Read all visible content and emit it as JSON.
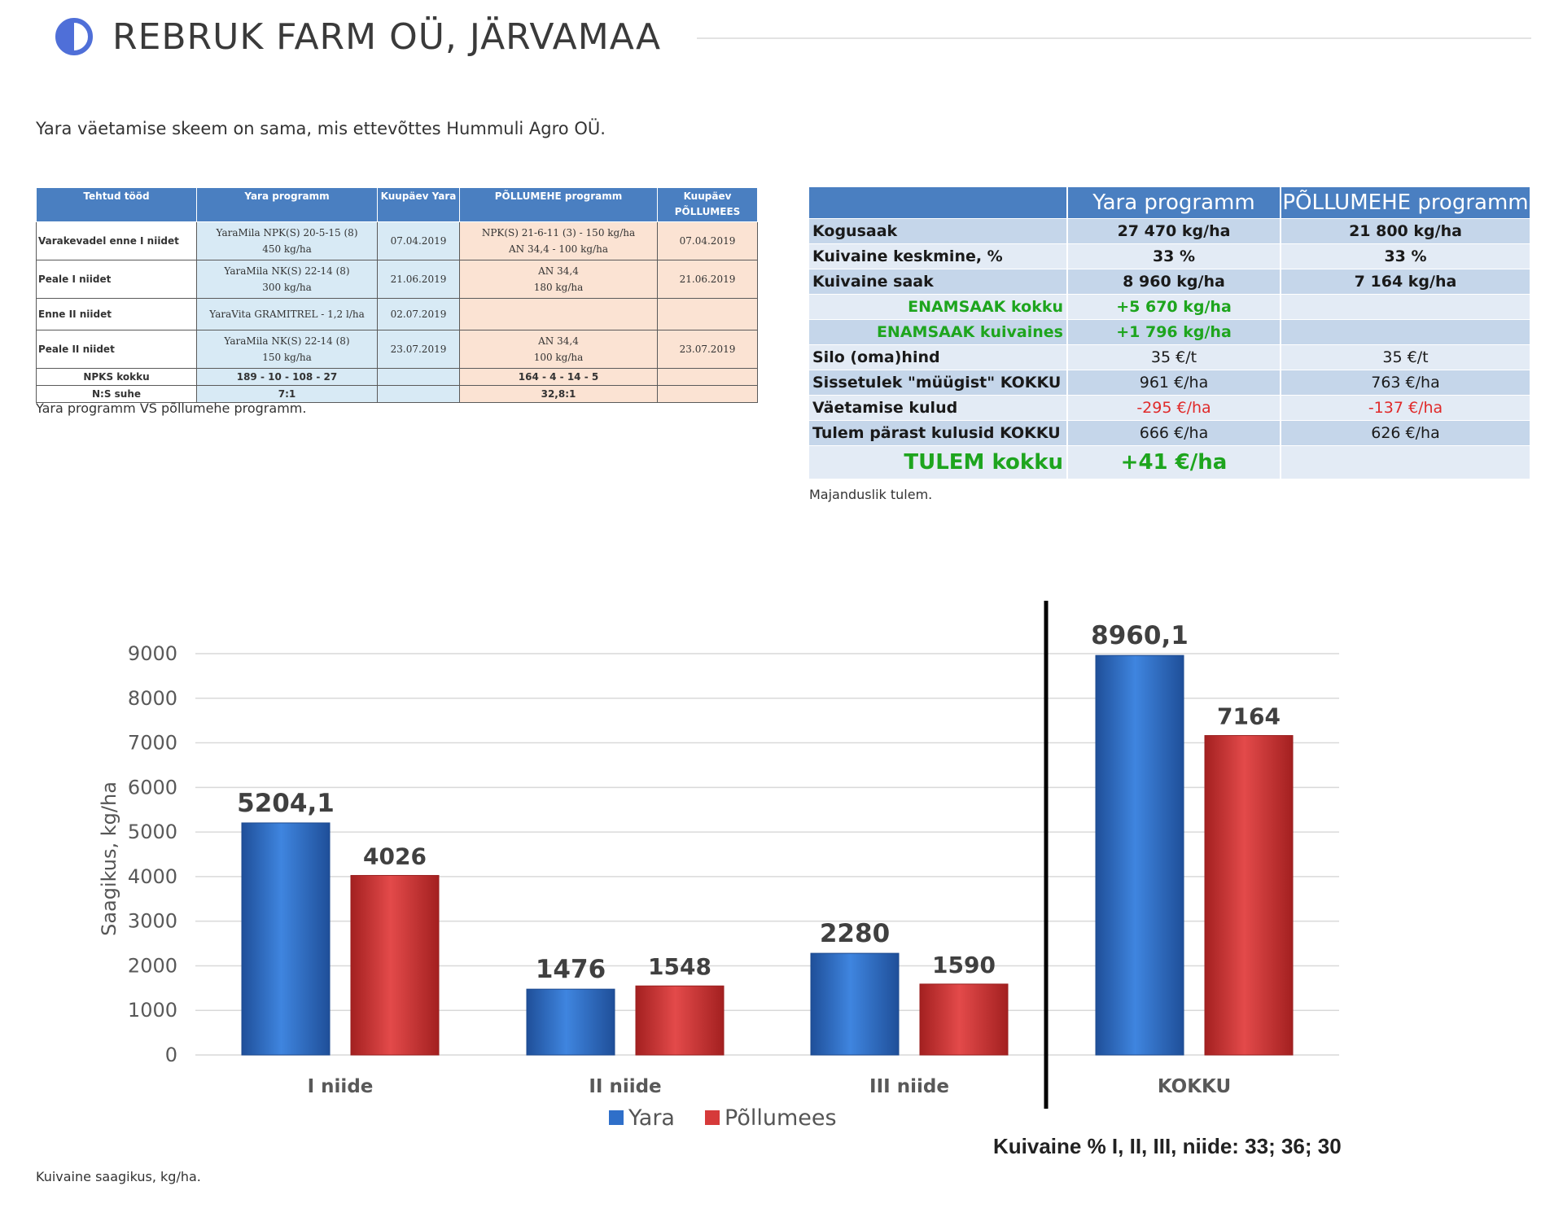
{
  "header": {
    "title": "REBRUK FARM OÜ, JÄRVAMAA",
    "logo_icon": "half-circle-icon",
    "accent": "#4f6fd8"
  },
  "intro": "Yara väetamise skeem on sama, mis ettevõttes Hummuli Agro OÜ.",
  "program_table": {
    "headers": [
      "Tehtud tööd",
      "Yara programm",
      "Kuupäev Yara",
      "PÕLLUMEHE programm",
      "Kuupäev PÕLLUMEES"
    ],
    "rows": [
      {
        "label": "Varakevadel enne I niidet",
        "yara": [
          "YaraMila NPK(S) 20-5-15 (8)",
          "450 kg/ha"
        ],
        "date_yara": "07.04.2019",
        "farmer": [
          "NPK(S) 21-6-11 (3) - 150 kg/ha",
          "AN 34,4 - 100 kg/ha"
        ],
        "date_farmer": "07.04.2019"
      },
      {
        "label": "Peale I niidet",
        "yara": [
          "YaraMila NK(S) 22-14 (8)",
          "300 kg/ha"
        ],
        "date_yara": "21.06.2019",
        "farmer": [
          "AN 34,4",
          "180 kg/ha"
        ],
        "date_farmer": "21.06.2019"
      },
      {
        "label": "Enne II niidet",
        "yara": [
          "YaraVita GRAMITREL - 1,2 l/ha"
        ],
        "date_yara": "02.07.2019",
        "farmer": [
          ""
        ],
        "date_farmer": ""
      },
      {
        "label": "Peale II niidet",
        "yara": [
          "YaraMila NK(S) 22-14 (8)",
          "150 kg/ha"
        ],
        "date_yara": "23.07.2019",
        "farmer": [
          "AN 34,4",
          "100 kg/ha"
        ],
        "date_farmer": "23.07.2019"
      }
    ],
    "npks": {
      "label": "NPKS kokku",
      "yara": "189 - 10 - 108 - 27",
      "farmer": "164 - 4 - 14 - 5"
    },
    "ns": {
      "label": "N:S suhe",
      "yara": "7:1",
      "farmer": "32,8:1"
    },
    "caption": "Yara programm VS põllumehe programm."
  },
  "economics_table": {
    "headers": [
      "",
      "Yara programm",
      "PÕLLUMEHE programm"
    ],
    "rows": [
      {
        "label": "Kogusaak",
        "yara": "27 470 kg/ha",
        "farmer": "21 800 kg/ha"
      },
      {
        "label": "Kuivaine keskmine, %",
        "yara": "33 %",
        "farmer": "33 %"
      },
      {
        "label": "Kuivaine saak",
        "yara": "8 960 kg/ha",
        "farmer": "7 164 kg/ha"
      },
      {
        "label": "ENAMSAAK kokku",
        "yara": "+5 670 kg/ha",
        "farmer": ""
      },
      {
        "label": "ENAMSAAK kuivaines",
        "yara": "+1 796 kg/ha",
        "farmer": ""
      },
      {
        "label": "Silo (oma)hind",
        "yara": "35 €/t",
        "farmer": "35 €/t"
      },
      {
        "label": "Sissetulek \"müügist\" KOKKU",
        "yara": "961 €/ha",
        "farmer": "763 €/ha"
      },
      {
        "label": "Väetamise kulud",
        "yara": "-295 €/ha",
        "farmer": "-137 €/ha"
      },
      {
        "label": "Tulem pärast kulusid KOKKU",
        "yara": "666 €/ha",
        "farmer": "626 €/ha"
      },
      {
        "label": "TULEM kokku",
        "yara": "+41 €/ha",
        "farmer": ""
      }
    ],
    "colors": {
      "header": "#4a7fc1",
      "row_dark": "#c5d6ea",
      "row_light": "#e3ebf5",
      "green": "#1ea51e",
      "red": "#e02a2a"
    },
    "caption": "Majanduslik tulem."
  },
  "chart_data": {
    "type": "bar",
    "categories": [
      "I niide",
      "II niide",
      "III niide",
      "KOKKU"
    ],
    "series": [
      {
        "name": "Yara",
        "values": [
          5204.1,
          1476,
          2280,
          8960.1
        ],
        "labels": [
          "5204,1",
          "1476",
          "2280",
          "8960,1"
        ],
        "color": "#2f6fc9"
      },
      {
        "name": "Põllumees",
        "values": [
          4026,
          1548,
          1590,
          7164
        ],
        "labels": [
          "4026",
          "1548",
          "1590",
          "7164"
        ],
        "color": "#d63a3a"
      }
    ],
    "ylabel": "Saagikus, kg/ha",
    "ylim": [
      0,
      9000
    ],
    "yticks": [
      "0",
      "1000",
      "2000",
      "3000",
      "4000",
      "5000",
      "6000",
      "7000",
      "8000",
      "9000"
    ],
    "grid": true,
    "legend": "bottom",
    "note": "Kuivaine % I, II, III, niide: 33; 36; 30"
  },
  "chart_caption": "Kuivaine saagikus, kg/ha."
}
